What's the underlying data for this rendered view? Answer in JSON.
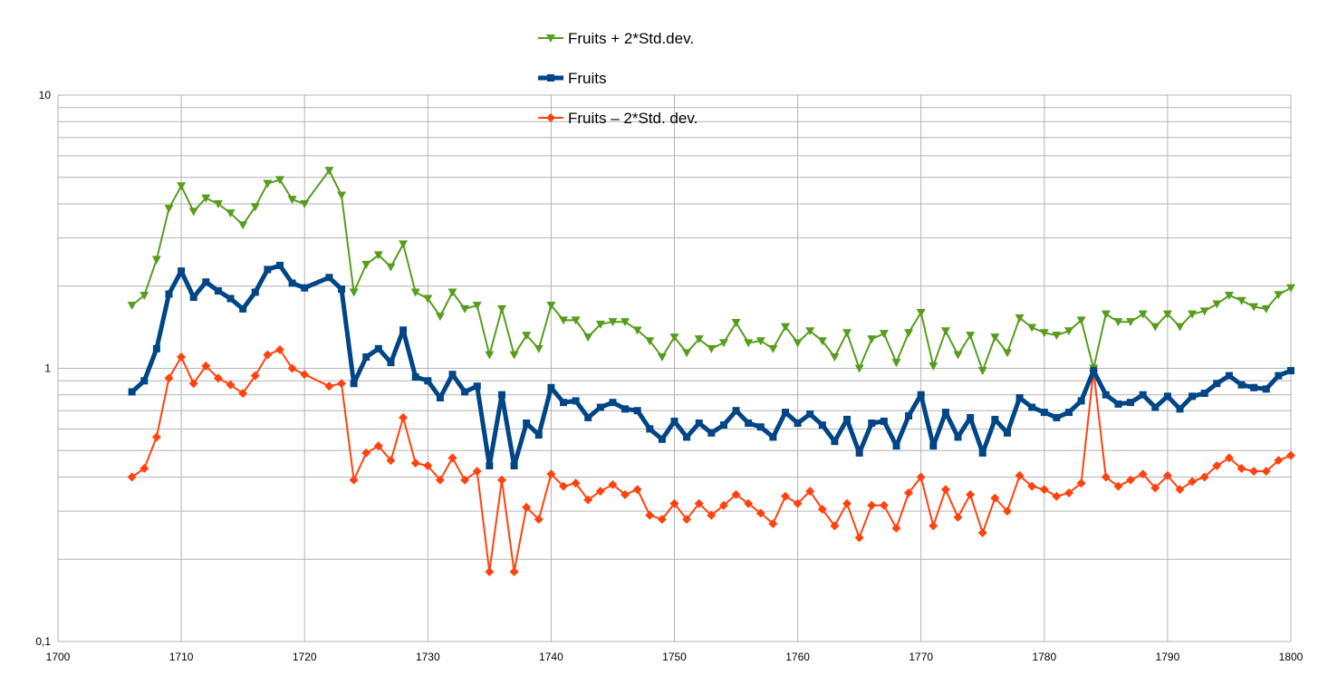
{
  "chart_data": {
    "type": "line",
    "x_axis": {
      "min": 1700,
      "max": 1800,
      "ticks": [
        1700,
        1710,
        1720,
        1730,
        1740,
        1750,
        1760,
        1770,
        1780,
        1790,
        1800
      ]
    },
    "y_axis": {
      "scale": "log",
      "min": 0.1,
      "max": 10,
      "tick_labels": [
        "0,1",
        "1",
        "10"
      ],
      "tick_values": [
        0.1,
        1,
        10
      ]
    },
    "grid": true,
    "legend": {
      "placement": "top-center",
      "items": [
        "Fruits + 2*Std.dev.",
        "Fruits",
        "Fruits – 2*Std. dev."
      ]
    },
    "x": [
      1706,
      1707,
      1708,
      1709,
      1710,
      1711,
      1712,
      1713,
      1714,
      1715,
      1716,
      1717,
      1718,
      1719,
      1720,
      1722,
      1723,
      1724,
      1725,
      1726,
      1727,
      1728,
      1729,
      1730,
      1731,
      1732,
      1733,
      1734,
      1735,
      1736,
      1737,
      1738,
      1739,
      1740,
      1741,
      1742,
      1743,
      1744,
      1745,
      1746,
      1747,
      1748,
      1749,
      1750,
      1751,
      1752,
      1753,
      1754,
      1755,
      1756,
      1757,
      1758,
      1759,
      1760,
      1761,
      1762,
      1763,
      1764,
      1765,
      1766,
      1767,
      1768,
      1769,
      1770,
      1771,
      1772,
      1773,
      1774,
      1775,
      1776,
      1777,
      1778,
      1779,
      1780,
      1781,
      1782,
      1783,
      1784,
      1785,
      1786,
      1787,
      1788,
      1789,
      1790,
      1791,
      1792,
      1793,
      1794,
      1795,
      1796,
      1797,
      1798,
      1799,
      1800
    ],
    "series": [
      {
        "name": "Fruits + 2*Std.dev.",
        "color": "#579d1c",
        "marker": "triangle-down",
        "values": [
          1.7,
          1.85,
          2.5,
          3.85,
          4.65,
          3.75,
          4.2,
          4.0,
          3.7,
          3.35,
          3.9,
          4.75,
          4.9,
          4.15,
          4.0,
          5.3,
          4.3,
          1.9,
          2.4,
          2.6,
          2.35,
          2.85,
          1.9,
          1.8,
          1.55,
          1.9,
          1.65,
          1.7,
          1.12,
          1.65,
          1.12,
          1.32,
          1.18,
          1.7,
          1.5,
          1.5,
          1.3,
          1.45,
          1.48,
          1.48,
          1.38,
          1.26,
          1.1,
          1.3,
          1.14,
          1.28,
          1.18,
          1.24,
          1.47,
          1.24,
          1.26,
          1.18,
          1.42,
          1.24,
          1.37,
          1.26,
          1.1,
          1.35,
          1.0,
          1.28,
          1.34,
          1.05,
          1.35,
          1.6,
          1.02,
          1.37,
          1.12,
          1.32,
          0.98,
          1.3,
          1.14,
          1.53,
          1.41,
          1.35,
          1.32,
          1.37,
          1.5,
          1.0,
          1.58,
          1.48,
          1.48,
          1.58,
          1.42,
          1.58,
          1.42,
          1.58,
          1.62,
          1.72,
          1.85,
          1.77,
          1.68,
          1.65,
          1.86,
          1.97
        ]
      },
      {
        "name": "Fruits",
        "color": "#004586",
        "marker": "square",
        "values": [
          0.82,
          0.9,
          1.18,
          1.87,
          2.27,
          1.82,
          2.07,
          1.92,
          1.8,
          1.65,
          1.9,
          2.3,
          2.38,
          2.05,
          1.97,
          2.15,
          1.95,
          0.88,
          1.1,
          1.18,
          1.05,
          1.38,
          0.93,
          0.9,
          0.78,
          0.95,
          0.82,
          0.86,
          0.44,
          0.8,
          0.44,
          0.63,
          0.57,
          0.85,
          0.75,
          0.76,
          0.66,
          0.72,
          0.75,
          0.71,
          0.7,
          0.6,
          0.55,
          0.64,
          0.56,
          0.63,
          0.58,
          0.62,
          0.7,
          0.63,
          0.61,
          0.56,
          0.69,
          0.63,
          0.68,
          0.62,
          0.54,
          0.65,
          0.49,
          0.63,
          0.64,
          0.52,
          0.67,
          0.8,
          0.52,
          0.69,
          0.56,
          0.66,
          0.49,
          0.65,
          0.58,
          0.78,
          0.72,
          0.69,
          0.66,
          0.69,
          0.76,
          0.98,
          0.8,
          0.74,
          0.75,
          0.8,
          0.72,
          0.79,
          0.71,
          0.79,
          0.81,
          0.88,
          0.94,
          0.87,
          0.85,
          0.84,
          0.94,
          0.98
        ]
      },
      {
        "name": "Fruits – 2*Std. dev.",
        "color": "#ff420e",
        "marker": "diamond",
        "values": [
          0.4,
          0.43,
          0.56,
          0.92,
          1.1,
          0.88,
          1.02,
          0.92,
          0.87,
          0.81,
          0.94,
          1.12,
          1.17,
          1.0,
          0.95,
          0.86,
          0.88,
          0.39,
          0.49,
          0.52,
          0.46,
          0.66,
          0.45,
          0.44,
          0.39,
          0.47,
          0.39,
          0.42,
          0.18,
          0.39,
          0.18,
          0.31,
          0.28,
          0.41,
          0.37,
          0.38,
          0.33,
          0.355,
          0.375,
          0.345,
          0.36,
          0.29,
          0.28,
          0.32,
          0.28,
          0.32,
          0.29,
          0.315,
          0.345,
          0.32,
          0.295,
          0.27,
          0.34,
          0.32,
          0.355,
          0.305,
          0.265,
          0.32,
          0.24,
          0.315,
          0.315,
          0.26,
          0.35,
          0.4,
          0.265,
          0.36,
          0.285,
          0.345,
          0.25,
          0.335,
          0.3,
          0.405,
          0.37,
          0.36,
          0.34,
          0.35,
          0.38,
          0.98,
          0.4,
          0.37,
          0.39,
          0.41,
          0.365,
          0.405,
          0.36,
          0.385,
          0.4,
          0.44,
          0.47,
          0.43,
          0.42,
          0.42,
          0.46,
          0.48
        ]
      }
    ]
  }
}
